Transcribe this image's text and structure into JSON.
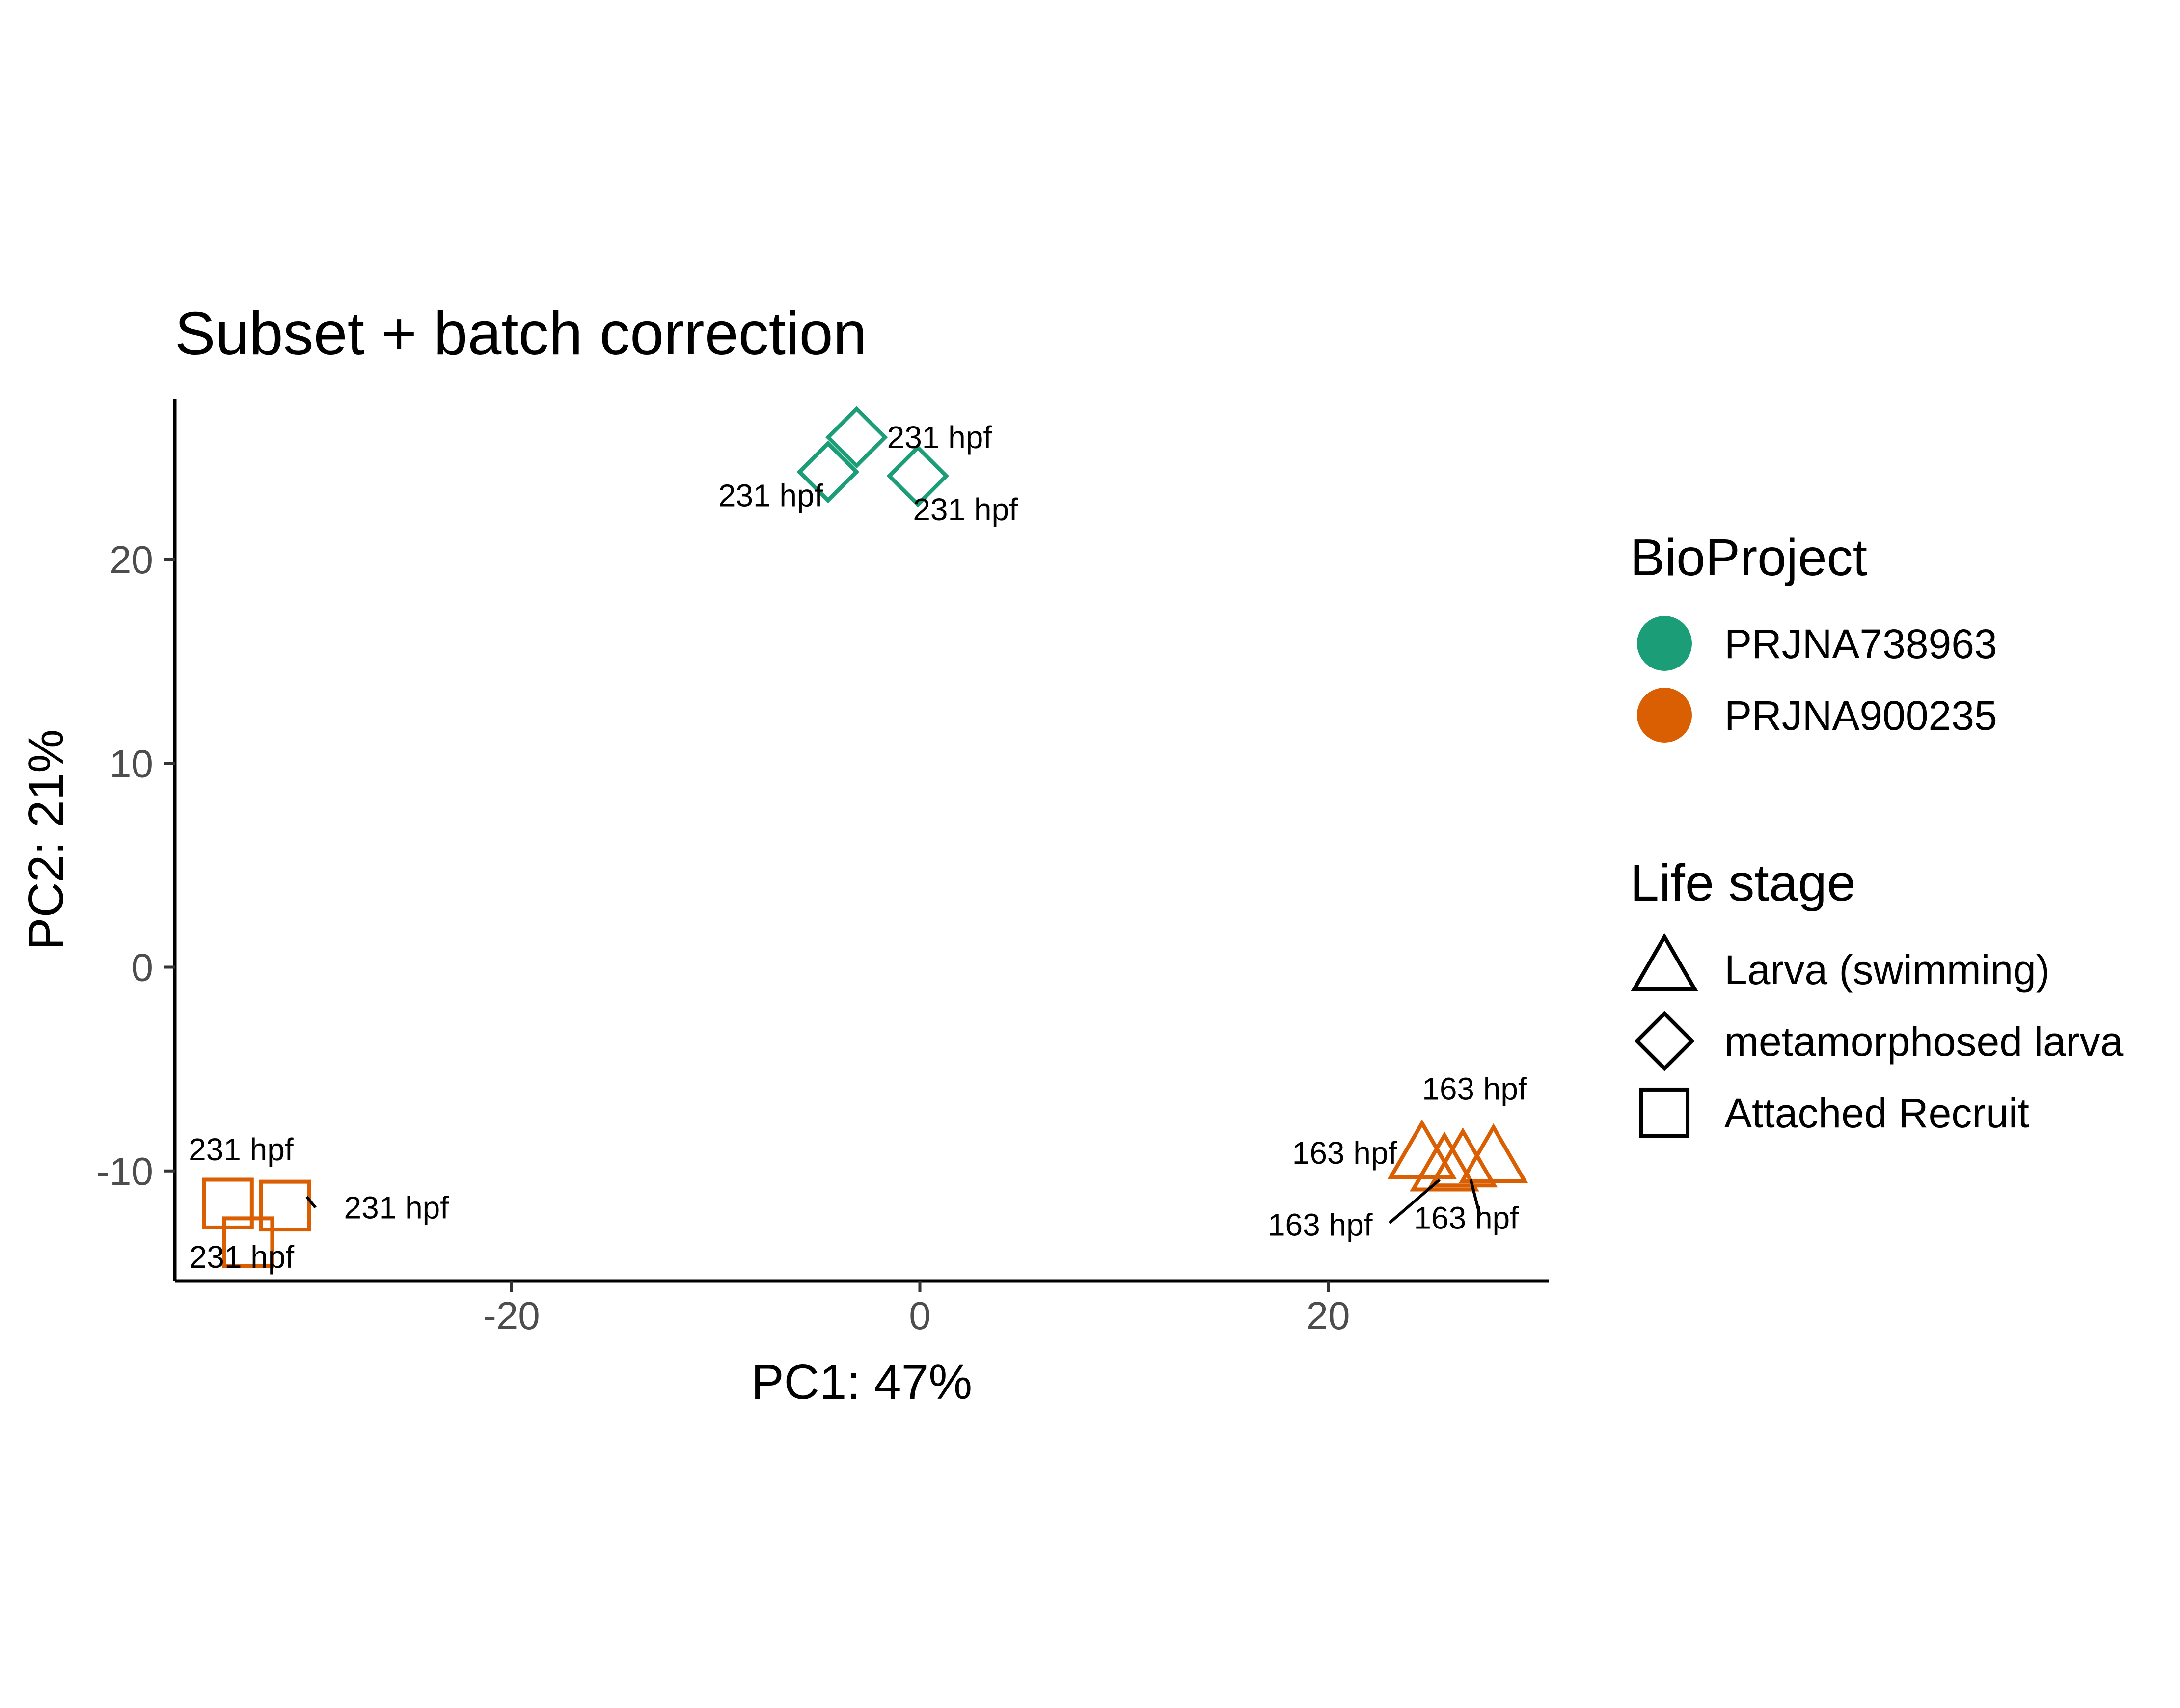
{
  "chart_data": {
    "type": "scatter",
    "title": "Subset + batch correction",
    "xlabel": "PC1: 47%",
    "ylabel": "PC2: 21%",
    "xlim": [
      -36.5,
      30.8
    ],
    "ylim": [
      -15.4,
      27.9
    ],
    "x_ticks": [
      -20,
      0,
      20
    ],
    "y_ticks": [
      -10,
      0,
      10,
      20
    ],
    "x_tick_labels": [
      "-20",
      "0",
      "20"
    ],
    "y_tick_labels": [
      "-10",
      "0",
      "10",
      "20"
    ],
    "grid": false,
    "legend_position": "right",
    "color_legend": {
      "title": "BioProject",
      "entries": [
        {
          "label": "PRJNA738963",
          "color": "#1b9e77"
        },
        {
          "label": "PRJNA900235",
          "color": "#d95f02"
        }
      ]
    },
    "shape_legend": {
      "title": "Life stage",
      "entries": [
        {
          "label": "Larva (swimming)",
          "shape": "triangle"
        },
        {
          "label": "metamorphosed larva",
          "shape": "diamond"
        },
        {
          "label": "Attached Recruit",
          "shape": "square"
        }
      ]
    },
    "points": [
      {
        "x": -3.1,
        "y": 26.0,
        "project": "PRJNA738963",
        "stage": "metamorphosed larva",
        "label": "231 hpf"
      },
      {
        "x": -4.5,
        "y": 24.3,
        "project": "PRJNA738963",
        "stage": "metamorphosed larva",
        "label": "231 hpf"
      },
      {
        "x": -0.1,
        "y": 24.1,
        "project": "PRJNA738963",
        "stage": "metamorphosed larva",
        "label": "231 hpf"
      },
      {
        "x": -33.9,
        "y": -11.6,
        "project": "PRJNA900235",
        "stage": "Attached Recruit",
        "label": "231 hpf"
      },
      {
        "x": -31.1,
        "y": -11.7,
        "project": "PRJNA900235",
        "stage": "Attached Recruit",
        "label": "231 hpf"
      },
      {
        "x": -32.9,
        "y": -13.5,
        "project": "PRJNA900235",
        "stage": "Attached Recruit",
        "label": "231 hpf"
      },
      {
        "x": 24.6,
        "y": -9.3,
        "project": "PRJNA900235",
        "stage": "Larva (swimming)",
        "label": "163 hpf"
      },
      {
        "x": 28.1,
        "y": -9.5,
        "project": "PRJNA900235",
        "stage": "Larva (swimming)",
        "label": "163 hpf"
      },
      {
        "x": 25.7,
        "y": -9.9,
        "project": "PRJNA900235",
        "stage": "Larva (swimming)",
        "label": "163 hpf"
      },
      {
        "x": 26.6,
        "y": -9.7,
        "project": "PRJNA900235",
        "stage": "Larva (swimming)",
        "label": "163 hpf"
      }
    ]
  }
}
